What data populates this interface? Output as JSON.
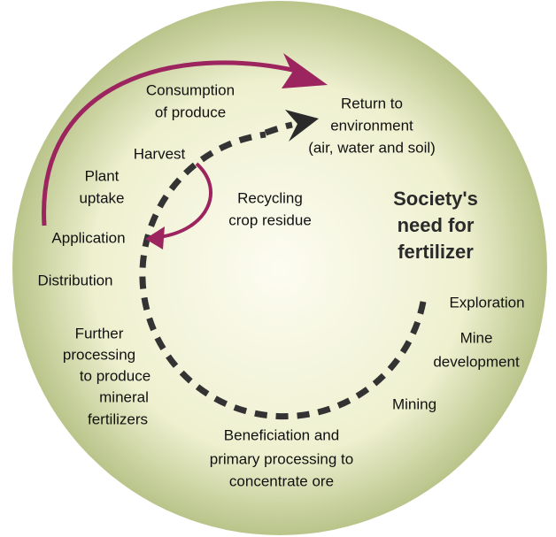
{
  "title": "Society's need for fertilizer",
  "nodes": [
    {
      "lines": [
        "Consumption",
        "of produce"
      ]
    },
    {
      "lines": [
        "Return to",
        "environment",
        "(air, water and soil)"
      ]
    },
    {
      "lines": [
        "Harvest"
      ]
    },
    {
      "lines": [
        "Plant",
        "uptake"
      ]
    },
    {
      "lines": [
        "Recycling",
        "crop residue"
      ]
    },
    {
      "lines": [
        "Application"
      ]
    },
    {
      "lines": [
        "Distribution"
      ]
    },
    {
      "lines": [
        "Exploration"
      ]
    },
    {
      "lines": [
        "Mine",
        "development"
      ]
    },
    {
      "lines": [
        "Further",
        "processing",
        "to produce",
        "mineral",
        "fertilizers"
      ]
    },
    {
      "lines": [
        "Mining"
      ]
    },
    {
      "lines": [
        "Beneficiation and",
        "primary processing to",
        "concentrate ore"
      ]
    }
  ]
}
